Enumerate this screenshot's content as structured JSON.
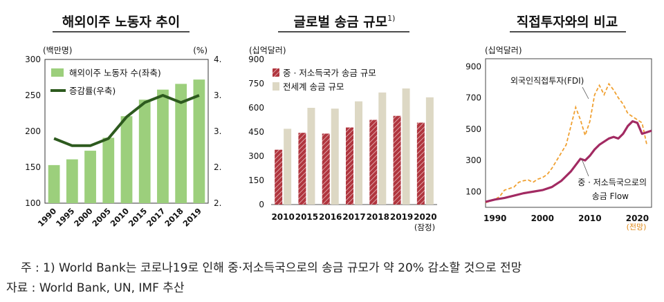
{
  "chart_data": [
    {
      "type": "bar+line",
      "title": "해외이주 노동자 추이",
      "left_unit": "(백만명)",
      "right_unit": "(%)",
      "categories": [
        "1990",
        "1995",
        "2000",
        "2005",
        "2010",
        "2015",
        "2017",
        "2018",
        "2019"
      ],
      "series": [
        {
          "name": "해외이주 노동자 수(좌축)",
          "axis": "left",
          "type": "bar",
          "color": "#9ccf7c",
          "values": [
            153,
            161,
            173,
            191,
            221,
            244,
            258,
            266,
            272
          ]
        },
        {
          "name": "증감률(우축)",
          "axis": "right",
          "type": "line",
          "color": "#2d5a1e",
          "values": [
            2.9,
            2.8,
            2.8,
            2.9,
            3.2,
            3.4,
            3.5,
            3.4,
            3.5
          ]
        }
      ],
      "ylim_left": [
        100,
        300
      ],
      "ylim_right": [
        2.0,
        4.0
      ],
      "yticks_left": [
        "100",
        "150",
        "200",
        "250",
        "300"
      ],
      "yticks_right": [
        "2.0",
        "2.5",
        "3.0",
        "3.5",
        "4.0"
      ]
    },
    {
      "type": "bar",
      "title": "글로벌 송금 규모",
      "title_sup": "1)",
      "unit": "(십억달러)",
      "categories": [
        "2010",
        "2015",
        "2016",
        "2017",
        "2018",
        "2019",
        "2020"
      ],
      "category_note": "(잠정)",
      "series": [
        {
          "name": "중 · 저소득국가 송금 규모",
          "color": "#b0353e",
          "pattern": "hatch",
          "values": [
            340,
            445,
            440,
            478,
            525,
            550,
            508
          ]
        },
        {
          "name": "전세계 송금 규모",
          "color": "#ddd8c4",
          "values": [
            470,
            600,
            595,
            640,
            695,
            720,
            665
          ]
        }
      ],
      "ylim": [
        0,
        900
      ],
      "yticks": [
        "0",
        "150",
        "300",
        "450",
        "600",
        "750",
        "900"
      ]
    },
    {
      "type": "line",
      "title": "직접투자와의 비교",
      "unit": "(십억달러)",
      "xlim": [
        1988,
        2023
      ],
      "ylim": [
        0,
        950
      ],
      "yticks": [
        "100",
        "300",
        "500",
        "700",
        "900"
      ],
      "xticks": [
        "1990",
        "2000",
        "2010",
        "2020"
      ],
      "x_note": "(전망)",
      "series": [
        {
          "name": "외국인직접투자(FDI)",
          "style": "dashed",
          "color": "#f0a030",
          "points": [
            [
              1988,
              30
            ],
            [
              1990,
              50
            ],
            [
              1991,
              70
            ],
            [
              1992,
              110
            ],
            [
              1993,
              120
            ],
            [
              1994,
              130
            ],
            [
              1995,
              160
            ],
            [
              1996,
              170
            ],
            [
              1997,
              175
            ],
            [
              1998,
              160
            ],
            [
              1999,
              180
            ],
            [
              2000,
              190
            ],
            [
              2001,
              210
            ],
            [
              2002,
              250
            ],
            [
              2003,
              300
            ],
            [
              2004,
              350
            ],
            [
              2005,
              400
            ],
            [
              2006,
              520
            ],
            [
              2007,
              640
            ],
            [
              2008,
              560
            ],
            [
              2009,
              460
            ],
            [
              2010,
              550
            ],
            [
              2011,
              720
            ],
            [
              2012,
              780
            ],
            [
              2013,
              720
            ],
            [
              2014,
              790
            ],
            [
              2015,
              750
            ],
            [
              2016,
              700
            ],
            [
              2017,
              660
            ],
            [
              2018,
              600
            ],
            [
              2019,
              580
            ],
            [
              2020,
              560
            ],
            [
              2021,
              540
            ],
            [
              2022,
              400
            ]
          ]
        },
        {
          "name": "중 · 저소득국으로의 송금 Flow",
          "style": "solid",
          "color": "#a22a62",
          "points": [
            [
              1988,
              35
            ],
            [
              1990,
              50
            ],
            [
              1992,
              60
            ],
            [
              1994,
              75
            ],
            [
              1996,
              90
            ],
            [
              1998,
              100
            ],
            [
              2000,
              110
            ],
            [
              2002,
              130
            ],
            [
              2004,
              170
            ],
            [
              2006,
              230
            ],
            [
              2008,
              310
            ],
            [
              2009,
              300
            ],
            [
              2010,
              330
            ],
            [
              2011,
              370
            ],
            [
              2012,
              400
            ],
            [
              2013,
              420
            ],
            [
              2014,
              440
            ],
            [
              2015,
              450
            ],
            [
              2016,
              440
            ],
            [
              2017,
              470
            ],
            [
              2018,
              520
            ],
            [
              2019,
              550
            ],
            [
              2020,
              540
            ],
            [
              2021,
              470
            ],
            [
              2022,
              480
            ],
            [
              2023,
              490
            ]
          ]
        }
      ]
    }
  ],
  "footnotes": {
    "note": "주 : 1) World Bank는 코로나19로 인해 중·저소득국으로의 송금 규모가 약 20% 감소할 것으로 전망",
    "source": "자료 : World Bank, UN, IMF 추산"
  }
}
